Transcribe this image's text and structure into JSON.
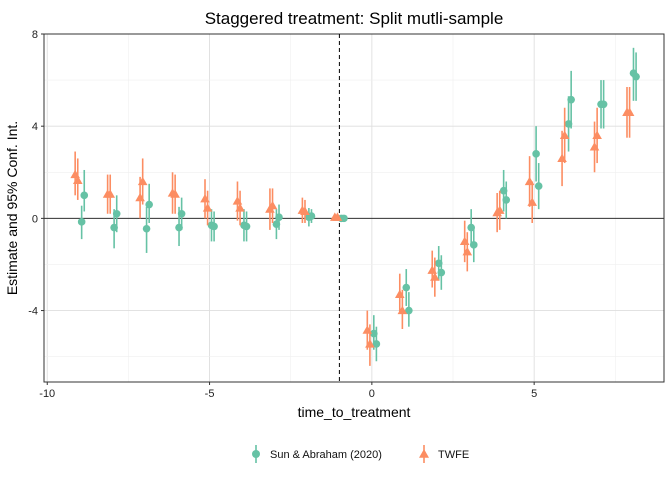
{
  "chart_data": {
    "type": "scatter",
    "title": "Staggered treatment: Split mutli-sample",
    "xlabel": "time_to_treatment",
    "ylabel": "Estimate and 95% Conf. Int.",
    "xlim": [
      -10.1,
      9.0
    ],
    "ylim": [
      -7.1,
      8.0
    ],
    "xticks": [
      -10,
      -5,
      0,
      5
    ],
    "yticks": [
      -4,
      0,
      4,
      8
    ],
    "grid": true,
    "reference_vline": -1,
    "reference_hline": 0,
    "legend_position": "bottom",
    "series": [
      {
        "name": "Sun & Abraham (2020)",
        "color": "#66c2a5",
        "marker": "circle",
        "points": [
          {
            "x": -8.94,
            "y": -0.15,
            "lo": -0.9,
            "hi": 0.55
          },
          {
            "x": -8.86,
            "y": 1.0,
            "lo": 0.3,
            "hi": 2.1
          },
          {
            "x": -7.94,
            "y": -0.4,
            "lo": -1.3,
            "hi": 0.4
          },
          {
            "x": -7.86,
            "y": 0.2,
            "lo": -0.6,
            "hi": 1.0
          },
          {
            "x": -6.94,
            "y": -0.45,
            "lo": -1.5,
            "hi": 0.5
          },
          {
            "x": -6.86,
            "y": 0.6,
            "lo": -0.2,
            "hi": 1.5
          },
          {
            "x": -5.94,
            "y": -0.4,
            "lo": -1.2,
            "hi": 0.5
          },
          {
            "x": -5.86,
            "y": 0.2,
            "lo": -0.5,
            "hi": 0.9
          },
          {
            "x": -4.94,
            "y": -0.3,
            "lo": -1.0,
            "hi": 0.4
          },
          {
            "x": -4.86,
            "y": -0.35,
            "lo": -1.0,
            "hi": 0.3
          },
          {
            "x": -3.94,
            "y": -0.3,
            "lo": -1.0,
            "hi": 0.4
          },
          {
            "x": -3.86,
            "y": -0.35,
            "lo": -1.0,
            "hi": 0.3
          },
          {
            "x": -2.94,
            "y": -0.25,
            "lo": -0.9,
            "hi": 0.4
          },
          {
            "x": -2.86,
            "y": 0.05,
            "lo": -0.5,
            "hi": 0.6
          },
          {
            "x": -1.94,
            "y": 0.05,
            "lo": -0.35,
            "hi": 0.45
          },
          {
            "x": -1.86,
            "y": 0.1,
            "lo": -0.2,
            "hi": 0.4
          },
          {
            "x": -0.94,
            "y": 0.0,
            "lo": -0.1,
            "hi": 0.1
          },
          {
            "x": -0.86,
            "y": 0.0,
            "lo": -0.1,
            "hi": 0.1
          },
          {
            "x": 0.06,
            "y": -5.0,
            "lo": -5.7,
            "hi": -4.2
          },
          {
            "x": 0.14,
            "y": -5.45,
            "lo": -6.2,
            "hi": -4.7
          },
          {
            "x": 1.06,
            "y": -3.0,
            "lo": -3.8,
            "hi": -2.2
          },
          {
            "x": 1.14,
            "y": -4.0,
            "lo": -4.7,
            "hi": -3.2
          },
          {
            "x": 2.06,
            "y": -1.95,
            "lo": -2.7,
            "hi": -1.2
          },
          {
            "x": 2.14,
            "y": -2.35,
            "lo": -3.1,
            "hi": -1.6
          },
          {
            "x": 3.06,
            "y": -0.4,
            "lo": -1.2,
            "hi": 0.4
          },
          {
            "x": 3.14,
            "y": -1.15,
            "lo": -1.9,
            "hi": -0.35
          },
          {
            "x": 4.06,
            "y": 1.2,
            "lo": 0.3,
            "hi": 2.1
          },
          {
            "x": 4.14,
            "y": 0.8,
            "lo": 0.0,
            "hi": 1.6
          },
          {
            "x": 5.06,
            "y": 2.8,
            "lo": 1.6,
            "hi": 4.0
          },
          {
            "x": 5.14,
            "y": 1.4,
            "lo": 0.4,
            "hi": 2.4
          },
          {
            "x": 6.06,
            "y": 4.1,
            "lo": 2.9,
            "hi": 5.3
          },
          {
            "x": 6.14,
            "y": 5.15,
            "lo": 3.9,
            "hi": 6.4
          },
          {
            "x": 7.06,
            "y": 4.95,
            "lo": 3.9,
            "hi": 6.0
          },
          {
            "x": 7.14,
            "y": 4.95,
            "lo": 3.9,
            "hi": 6.0
          },
          {
            "x": 8.06,
            "y": 6.3,
            "lo": 5.1,
            "hi": 7.4
          },
          {
            "x": 8.14,
            "y": 6.15,
            "lo": 5.1,
            "hi": 7.2
          }
        ]
      },
      {
        "name": "TWFE",
        "color": "#fc8d62",
        "marker": "triangle",
        "points": [
          {
            "x": -9.14,
            "y": 1.9,
            "lo": 1.0,
            "hi": 2.9
          },
          {
            "x": -9.06,
            "y": 1.65,
            "lo": 0.8,
            "hi": 2.6
          },
          {
            "x": -8.14,
            "y": 1.05,
            "lo": 0.2,
            "hi": 1.9
          },
          {
            "x": -8.06,
            "y": 1.05,
            "lo": 0.2,
            "hi": 1.9
          },
          {
            "x": -7.14,
            "y": 0.9,
            "lo": 0.0,
            "hi": 1.8
          },
          {
            "x": -7.06,
            "y": 1.6,
            "lo": 0.6,
            "hi": 2.6
          },
          {
            "x": -6.14,
            "y": 1.1,
            "lo": 0.2,
            "hi": 2.0
          },
          {
            "x": -6.06,
            "y": 1.05,
            "lo": 0.2,
            "hi": 1.9
          },
          {
            "x": -5.14,
            "y": 0.85,
            "lo": 0.0,
            "hi": 1.7
          },
          {
            "x": -5.06,
            "y": 0.45,
            "lo": -0.3,
            "hi": 1.2
          },
          {
            "x": -4.14,
            "y": 0.75,
            "lo": -0.1,
            "hi": 1.6
          },
          {
            "x": -4.06,
            "y": 0.45,
            "lo": -0.3,
            "hi": 1.2
          },
          {
            "x": -3.14,
            "y": 0.4,
            "lo": -0.5,
            "hi": 1.3
          },
          {
            "x": -3.06,
            "y": 0.55,
            "lo": -0.2,
            "hi": 1.3
          },
          {
            "x": -2.14,
            "y": 0.35,
            "lo": -0.2,
            "hi": 0.9
          },
          {
            "x": -2.06,
            "y": 0.3,
            "lo": -0.2,
            "hi": 0.8
          },
          {
            "x": -1.14,
            "y": 0.05,
            "lo": -0.05,
            "hi": 0.15
          },
          {
            "x": -1.06,
            "y": 0.05,
            "lo": -0.05,
            "hi": 0.15
          },
          {
            "x": -0.14,
            "y": -4.85,
            "lo": -5.7,
            "hi": -4.0
          },
          {
            "x": -0.06,
            "y": -5.45,
            "lo": -6.4,
            "hi": -4.6
          },
          {
            "x": 0.86,
            "y": -3.3,
            "lo": -4.1,
            "hi": -2.4
          },
          {
            "x": 0.94,
            "y": -4.0,
            "lo": -4.8,
            "hi": -3.1
          },
          {
            "x": 1.86,
            "y": -2.25,
            "lo": -3.0,
            "hi": -1.4
          },
          {
            "x": 1.94,
            "y": -2.55,
            "lo": -3.4,
            "hi": -1.7
          },
          {
            "x": 2.86,
            "y": -1.0,
            "lo": -1.9,
            "hi": -0.1
          },
          {
            "x": 2.94,
            "y": -1.45,
            "lo": -2.3,
            "hi": -0.6
          },
          {
            "x": 3.86,
            "y": 0.25,
            "lo": -0.6,
            "hi": 1.1
          },
          {
            "x": 3.94,
            "y": 0.35,
            "lo": -0.5,
            "hi": 1.2
          },
          {
            "x": 4.86,
            "y": 1.6,
            "lo": 0.5,
            "hi": 2.7
          },
          {
            "x": 4.94,
            "y": 0.7,
            "lo": -0.2,
            "hi": 1.6
          },
          {
            "x": 5.86,
            "y": 2.6,
            "lo": 1.4,
            "hi": 3.8
          },
          {
            "x": 5.94,
            "y": 3.6,
            "lo": 2.4,
            "hi": 4.8
          },
          {
            "x": 6.86,
            "y": 3.1,
            "lo": 2.0,
            "hi": 4.2
          },
          {
            "x": 6.94,
            "y": 3.6,
            "lo": 2.4,
            "hi": 4.8
          },
          {
            "x": 7.86,
            "y": 4.6,
            "lo": 3.5,
            "hi": 5.7
          },
          {
            "x": 7.94,
            "y": 4.6,
            "lo": 3.5,
            "hi": 5.7
          }
        ]
      }
    ]
  }
}
